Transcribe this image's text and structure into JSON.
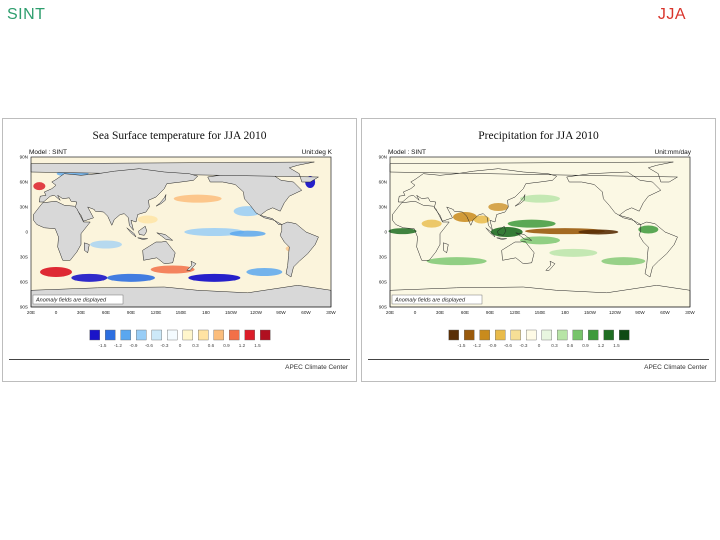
{
  "corner": {
    "left": "SINT",
    "right": "JJA"
  },
  "chart_data": [
    {
      "type": "heatmap",
      "title": "Sea Surface temperature for JJA 2010",
      "model": "Model : SINT",
      "units": "Unit:deg K",
      "note": "Anomaly fields are displayed",
      "xlabel": "",
      "ylabel": "",
      "x_ticks": [
        "20E",
        "0",
        "30E",
        "60E",
        "90E",
        "120E",
        "150E",
        "180",
        "150W",
        "120W",
        "90W",
        "60W",
        "30W"
      ],
      "y_ticks": [
        "90N",
        "60N",
        "30N",
        "0",
        "30S",
        "60S",
        "90S"
      ],
      "colorbar_levels": [
        "-1.5",
        "-1.2",
        "-0.9",
        "-0.6",
        "-0.3",
        "0",
        "0.3",
        "0.6",
        "0.9",
        "1.2",
        "1.5"
      ],
      "colorbar_colors": [
        "#1a14c8",
        "#2d6fe0",
        "#5aa7ef",
        "#98cdf6",
        "#cde9f9",
        "#f4fbff",
        "#fff6cc",
        "#ffe3a3",
        "#fbbd7c",
        "#f27048",
        "#dc1e2a",
        "#b01020"
      ],
      "features": [
        {
          "region": "Southern Ocean south of Africa",
          "sign": "negative",
          "strength": "strong"
        },
        {
          "region": "Southern Ocean south of Pacific",
          "sign": "negative",
          "strength": "strong"
        },
        {
          "region": "Southern Ocean near 0-30E",
          "sign": "positive",
          "strength": "strong"
        },
        {
          "region": "Equatorial central-east Pacific",
          "sign": "negative",
          "strength": "moderate"
        },
        {
          "region": "North Pacific 30-45N",
          "sign": "positive",
          "strength": "moderate"
        },
        {
          "region": "North Atlantic 60N",
          "sign": "negative",
          "strength": "strong"
        }
      ]
    },
    {
      "type": "heatmap",
      "title": "Precipitation for JJA 2010",
      "model": "Model : SINT",
      "units": "Unit:mm/day",
      "note": "Anomaly fields are displayed",
      "xlabel": "",
      "ylabel": "",
      "x_ticks": [
        "20E",
        "0",
        "30E",
        "60E",
        "90E",
        "120E",
        "150E",
        "180",
        "150W",
        "120W",
        "90W",
        "60W",
        "30W"
      ],
      "y_ticks": [
        "90N",
        "60N",
        "30N",
        "0",
        "30S",
        "60S",
        "90S"
      ],
      "colorbar_levels": [
        "-1.5",
        "-1.2",
        "-0.9",
        "-0.6",
        "-0.3",
        "0",
        "0.3",
        "0.6",
        "0.9",
        "1.2",
        "1.5"
      ],
      "colorbar_colors": [
        "#5a2f06",
        "#9a5a0c",
        "#c98b1c",
        "#e9bb4a",
        "#f6df96",
        "#fffbe6",
        "#e8f6e0",
        "#b7e4a6",
        "#77c46a",
        "#3e9a3c",
        "#1f6e22",
        "#0f4a14"
      ],
      "features": [
        {
          "region": "Equatorial central Pacific",
          "sign": "negative",
          "strength": "strong"
        },
        {
          "region": "Maritime Continent",
          "sign": "positive",
          "strength": "strong"
        },
        {
          "region": "Western Pacific 5-15N",
          "sign": "positive",
          "strength": "moderate"
        },
        {
          "region": "South Asia / Indian monsoon",
          "sign": "negative",
          "strength": "moderate"
        },
        {
          "region": "Southern Hemisphere storm track",
          "sign": "positive",
          "strength": "weak"
        }
      ]
    }
  ],
  "footer": {
    "credit": "APEC Climate Center"
  }
}
